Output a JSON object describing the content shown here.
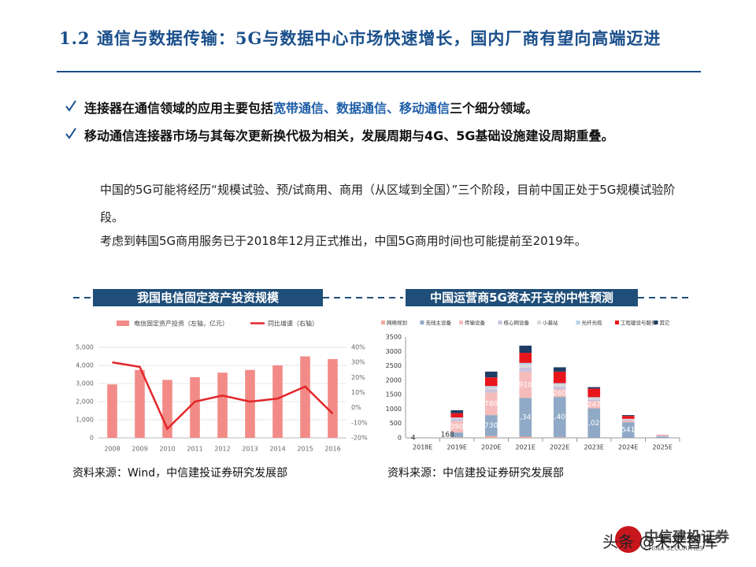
{
  "header": {
    "title": "1.2 通信与数据传输：5G与数据中心市场快速增长，国内厂商有望向高端迈进"
  },
  "bullets": [
    {
      "parts": [
        "连接器在通信领域的应用主要包括",
        "宽带通信、数据通信、移动通信",
        "三个细分领域。"
      ]
    },
    {
      "parts": [
        "移动通信连接器市场与其每次更新换代极为相关，发展周期与4G、5G基础设施建设周期重叠。"
      ]
    }
  ],
  "paragraphs": [
    "中国的5G可能将经历“规模试验、预/试商用、商用（从区域到全国）”三个阶段，目前中国正处于5G规模试验阶段。",
    "考虑到韩国5G商用服务已于2018年12月正式推出，中国5G商用时间也可能提前至2019年。"
  ],
  "chart_data": [
    {
      "type": "combo",
      "title": "我国电信固定资产投资规模",
      "source": "资料来源：Wind，中信建投证券研究发展部",
      "categories": [
        "2008",
        "2009",
        "2010",
        "2011",
        "2012",
        "2013",
        "2014",
        "2015",
        "2016"
      ],
      "series": [
        {
          "name": "电信固定资产投资（左轴，亿元）",
          "type": "bar",
          "color": "#f28b87",
          "values": [
            2950,
            3750,
            3200,
            3350,
            3600,
            3750,
            4000,
            4500,
            4350
          ]
        },
        {
          "name": "同比增速（右轴）",
          "type": "line",
          "axis": "y2",
          "color": "#e3262a",
          "values": [
            30,
            27,
            -14,
            4,
            8,
            4,
            6,
            14,
            -4
          ]
        }
      ],
      "ylim": [
        0,
        5000
      ],
      "yticks": [
        0,
        {
          "value": 1000,
          "label": "1,000"
        },
        {
          "value": 2000,
          "label": "2,000"
        },
        {
          "value": 3000,
          "label": "3,000"
        },
        {
          "value": 4000,
          "label": "4,000"
        },
        {
          "value": 5000,
          "label": "5,000"
        }
      ],
      "y2lim": [
        -20,
        40
      ],
      "y2ticks": [
        {
          "value": -20,
          "label": "-20%"
        },
        {
          "value": -10,
          "label": "-10%"
        },
        {
          "value": 0,
          "label": "0%"
        },
        {
          "value": 10,
          "label": "10%"
        },
        {
          "value": 20,
          "label": "20%"
        },
        {
          "value": 30,
          "label": "30%"
        },
        {
          "value": 40,
          "label": "40%"
        }
      ],
      "grid": true
    },
    {
      "type": "stacked_bar",
      "title": "中国运营商5G资本开支的中性预测",
      "source": "资料来源：中信建投证券研究发展部",
      "categories": [
        "2018E",
        "2019E",
        "2020E",
        "2021E",
        "2022E",
        "2023E",
        "2024E",
        "2025E"
      ],
      "series": [
        {
          "name": "网络规划",
          "color": "#f0a99a",
          "values": [
            0,
            20,
            60,
            40,
            20,
            0,
            0,
            0
          ]
        },
        {
          "name": "无线主设备",
          "color": "#8fa9c6",
          "values": [
            4,
            168,
            730,
            1342,
            1400,
            1025,
            541,
            50
          ],
          "value_labels": [
            "4",
            "168",
            "730",
            "1,342",
            "1,400",
            "1,025",
            "541",
            null
          ]
        },
        {
          "name": "传输设备",
          "color": "#f6bcbc",
          "values": [
            0,
            390,
            780,
            910,
            260,
            247,
            60,
            20
          ],
          "value_labels": [
            null,
            "390",
            "780",
            "910",
            "260",
            "247",
            null,
            null
          ]
        },
        {
          "name": "核心网设备",
          "color": "#c9c3dd",
          "values": [
            0,
            80,
            120,
            150,
            100,
            60,
            30,
            10
          ]
        },
        {
          "name": "小基站",
          "color": "#d9d9d9",
          "values": [
            0,
            20,
            60,
            100,
            80,
            50,
            20,
            5
          ]
        },
        {
          "name": "光纤光缆",
          "color": "#b7d3ea",
          "values": [
            0,
            30,
            50,
            60,
            40,
            30,
            10,
            5
          ]
        },
        {
          "name": "工程建设与服务",
          "color": "#e8161c",
          "values": [
            0,
            150,
            300,
            350,
            400,
            300,
            100,
            10
          ]
        },
        {
          "name": "其它",
          "color": "#1f3c66",
          "values": [
            0,
            100,
            200,
            250,
            150,
            50,
            30,
            0
          ]
        }
      ],
      "ylim": [
        0,
        3500
      ],
      "yticks": [
        0,
        500,
        1000,
        1500,
        2000,
        2500,
        3000,
        3500
      ],
      "grid": false
    }
  ],
  "footer": {
    "logo": "中信建投证券",
    "logo_en": "CHINA SECURITIES",
    "watermark": "头条 @未来智库"
  }
}
